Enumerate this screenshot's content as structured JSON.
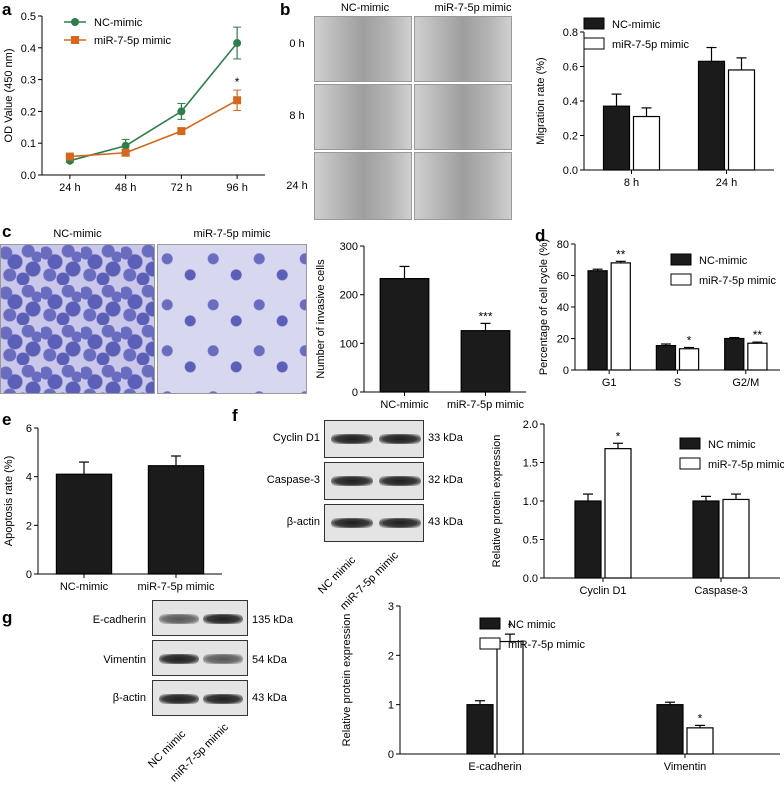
{
  "panels": {
    "a": "a",
    "b": "b",
    "c": "c",
    "d": "d",
    "e": "e",
    "f": "f",
    "g": "g"
  },
  "b_images": {
    "cols": [
      "NC-mimic",
      "miR-7-5p mimic"
    ],
    "rows": [
      "0 h",
      "8 h",
      "24 h"
    ]
  },
  "c_images": {
    "cols": [
      "NC-mimic",
      "miR-7-5p mimic"
    ]
  },
  "f_blot": {
    "rows": [
      "Cyclin D1",
      "Caspase-3",
      "β-actin"
    ],
    "kda": [
      "33 kDa",
      "32 kDa",
      "43 kDa"
    ],
    "lanes": [
      "NC mimic",
      "miR-7-5p mimic"
    ]
  },
  "g_blot": {
    "rows": [
      "E-cadherin",
      "Vimentin",
      "β-actin"
    ],
    "kda": [
      "135 kDa",
      "54 kDa",
      "43 kDa"
    ],
    "lanes": [
      "NC mimic",
      "miR-7-5p mimic"
    ]
  },
  "chart_data": [
    {
      "id": "a",
      "type": "line",
      "categories": [
        "24 h",
        "48 h",
        "72 h",
        "96 h"
      ],
      "ylabel": "OD Value (450 nm)",
      "ylim": [
        0,
        0.5
      ],
      "yticks": [
        "0.0",
        "0.1",
        "0.2",
        "0.3",
        "0.4",
        "0.5"
      ],
      "series": [
        {
          "name": "NC-mimic",
          "values": [
            0.045,
            0.092,
            0.2,
            0.415
          ],
          "errors": [
            0.005,
            0.02,
            0.025,
            0.05
          ],
          "color": "#2e7d4a"
        },
        {
          "name": "miR-7-5p mimic",
          "values": [
            0.058,
            0.07,
            0.138,
            0.235
          ],
          "errors": [
            0.005,
            0.01,
            0.008,
            0.032
          ],
          "color": "#d2691e"
        }
      ],
      "annotations": [
        {
          "category": "96 h",
          "text": "*"
        }
      ],
      "legend": "top-left"
    },
    {
      "id": "b",
      "type": "bar",
      "categories": [
        "8 h",
        "24 h"
      ],
      "ylabel": "Migration rate (%)",
      "ylim": [
        0,
        0.8
      ],
      "yticks": [
        "0.0",
        "0.2",
        "0.4",
        "0.6",
        "0.8"
      ],
      "series": [
        {
          "name": "NC-mimic",
          "values": [
            0.37,
            0.63
          ],
          "errors": [
            0.07,
            0.08
          ]
        },
        {
          "name": "miR-7-5p mimic",
          "values": [
            0.31,
            0.58
          ],
          "errors": [
            0.05,
            0.07
          ]
        }
      ],
      "legend": "top-left"
    },
    {
      "id": "c",
      "type": "bar",
      "categories": [
        "NC-mimic",
        "miR-7-5p mimic"
      ],
      "ylabel": "Number of invasive cells",
      "ylim": [
        0,
        300
      ],
      "yticks": [
        "0",
        "100",
        "200",
        "300"
      ],
      "series": [
        {
          "values": [
            233,
            126
          ],
          "errors": [
            25,
            15
          ]
        }
      ],
      "annotations": [
        {
          "category": "miR-7-5p mimic",
          "text": "***"
        }
      ]
    },
    {
      "id": "d",
      "type": "bar",
      "categories": [
        "G1",
        "S",
        "G2/M"
      ],
      "ylabel": "Percentage of cell cycle (%)",
      "ylim": [
        0,
        80
      ],
      "yticks": [
        "0",
        "20",
        "40",
        "60",
        "80"
      ],
      "series": [
        {
          "name": "NC-mimic",
          "values": [
            63,
            15.5,
            20
          ],
          "errors": [
            1,
            1,
            0.6
          ]
        },
        {
          "name": "miR-7-5p mimic",
          "values": [
            68,
            13.5,
            17
          ],
          "errors": [
            1,
            0.8,
            0.7
          ]
        }
      ],
      "annotations": [
        {
          "category": "G1",
          "text": "**"
        },
        {
          "category": "S",
          "text": "*"
        },
        {
          "category": "G2/M",
          "text": "**"
        }
      ],
      "legend": "top-right"
    },
    {
      "id": "e",
      "type": "bar",
      "categories": [
        "NC-mimic",
        "miR-7-5p mimic"
      ],
      "ylabel": "Apoptosis rate (%)",
      "ylim": [
        0,
        6
      ],
      "yticks": [
        "0",
        "2",
        "4",
        "6"
      ],
      "series": [
        {
          "values": [
            4.1,
            4.45
          ],
          "errors": [
            0.5,
            0.4
          ]
        }
      ]
    },
    {
      "id": "f",
      "type": "bar",
      "categories": [
        "Cyclin D1",
        "Caspase-3"
      ],
      "ylabel": "Relative protein expression",
      "ylim": [
        0,
        2.0
      ],
      "yticks": [
        "0.0",
        "0.5",
        "1.0",
        "1.5",
        "2.0"
      ],
      "series": [
        {
          "name": "NC mimic",
          "values": [
            1.0,
            1.0
          ],
          "errors": [
            0.09,
            0.06
          ]
        },
        {
          "name": "miR-7-5p mimic",
          "values": [
            1.68,
            1.02
          ],
          "errors": [
            0.07,
            0.07
          ]
        }
      ],
      "annotations": [
        {
          "category": "Cyclin D1",
          "text": "*"
        }
      ],
      "legend": "top-right"
    },
    {
      "id": "g",
      "type": "bar",
      "categories": [
        "E-cadherin",
        "Vimentin"
      ],
      "ylabel": "Relative protein expression",
      "ylim": [
        0,
        3
      ],
      "yticks": [
        "0",
        "1",
        "2",
        "3"
      ],
      "series": [
        {
          "name": "NC mimic",
          "values": [
            1.0,
            1.0
          ],
          "errors": [
            0.08,
            0.05
          ]
        },
        {
          "name": "miR-7-5p mimic",
          "values": [
            2.28,
            0.53
          ],
          "errors": [
            0.15,
            0.05
          ]
        }
      ],
      "annotations": [
        {
          "category": "E-cadherin",
          "text": "*"
        },
        {
          "category": "Vimentin",
          "text": "*"
        }
      ],
      "legend": "top-right"
    }
  ]
}
